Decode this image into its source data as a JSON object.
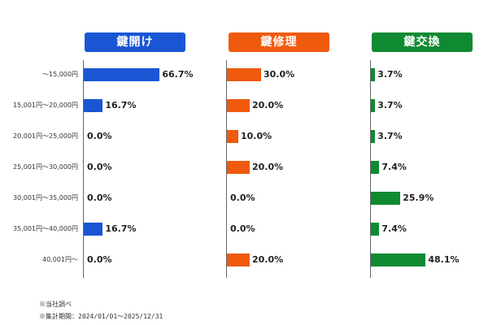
{
  "chart_data": {
    "type": "bar",
    "categories": [
      "～15,000円",
      "15,001円～20,000円",
      "20,001円～25,000円",
      "25,001円～30,000円",
      "30,001円～35,000円",
      "35,001円～40,000円",
      "40,001円～"
    ],
    "series": [
      {
        "name": "鍵開け",
        "color": "#1a56d4",
        "values": [
          66.7,
          16.7,
          0.0,
          0.0,
          0.0,
          16.7,
          0.0
        ]
      },
      {
        "name": "鍵修理",
        "color": "#f05a0e",
        "values": [
          30.0,
          20.0,
          10.0,
          20.0,
          0.0,
          0.0,
          20.0
        ]
      },
      {
        "name": "鍵交換",
        "color": "#0f8a32",
        "values": [
          3.7,
          3.7,
          3.7,
          7.4,
          25.9,
          7.4,
          48.1
        ]
      }
    ],
    "value_suffix": "%",
    "xlim": [
      0,
      100
    ]
  },
  "notes": [
    "※当社調べ",
    "※集計期間：2024/01/01～2025/12/31"
  ]
}
